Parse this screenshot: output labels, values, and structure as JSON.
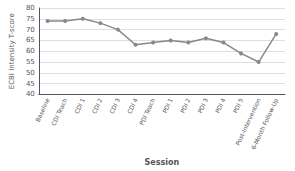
{
  "chart_data": {
    "type": "line",
    "categories": [
      "Baseline",
      "CDI Teach",
      "CDI 1",
      "CDI 2",
      "CDI 3",
      "CDI 4",
      "PDI Teach",
      "PDI 1",
      "PDI 2",
      "PDI 3",
      "PDI 4",
      "PDI 5",
      "Post-Intervention",
      "6-Month Follow-Up"
    ],
    "values": [
      74,
      74,
      75,
      73,
      70,
      63,
      64,
      65,
      64,
      66,
      64,
      59,
      55,
      68
    ],
    "xlabel": "Session",
    "ylabel": "ECBI Intensity T-score",
    "color": "#888888",
    "marker": "circle",
    "ylim": [
      40,
      80
    ],
    "yticks": [
      40,
      45,
      50,
      55,
      60,
      65,
      70,
      75,
      80
    ],
    "grid": true
  }
}
